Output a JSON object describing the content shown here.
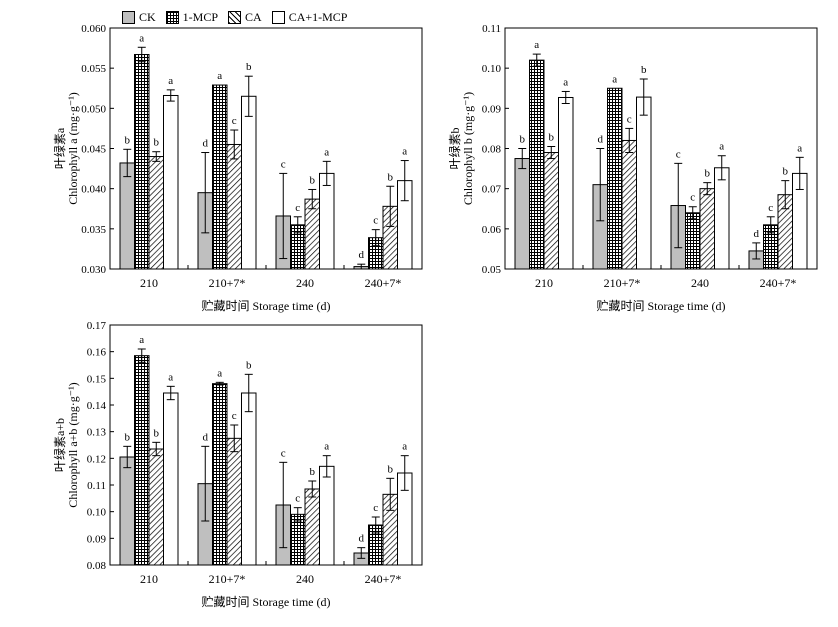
{
  "legend": [
    {
      "name": "CK",
      "pattern": "solid"
    },
    {
      "name": "1-MCP",
      "pattern": "grid"
    },
    {
      "name": "CA",
      "pattern": "hatch"
    },
    {
      "name": "CA+1-MCP",
      "pattern": "white"
    }
  ],
  "colors": {
    "ck_fill": "#bfbfbf",
    "stroke": "#000000",
    "white": "#ffffff"
  },
  "chart_data": [
    {
      "type": "bar",
      "categories": [
        "210",
        "210+7*",
        "240",
        "240+7*"
      ],
      "xlabel": "贮藏时间 Storage time (d)",
      "ylabel_cn": "叶绿素a",
      "ylabel_en": "Chlorophyll a (mg·g⁻¹)",
      "ylim": [
        0.03,
        0.06
      ],
      "ticks": [
        "0.030",
        "0.035",
        "0.040",
        "0.045",
        "0.050",
        "0.055",
        "0.060"
      ],
      "series": [
        {
          "name": "CK",
          "values": [
            0.0432,
            0.0395,
            0.0366,
            0.0303
          ],
          "errors": [
            0.0017,
            0.005,
            0.0053,
            0.0003
          ],
          "letters": [
            "b",
            "d",
            "c",
            "d"
          ]
        },
        {
          "name": "1-MCP",
          "values": [
            0.0567,
            0.0529,
            0.0355,
            0.0339
          ],
          "errors": [
            0.0009,
            0.0,
            0.001,
            0.001
          ],
          "letters": [
            "a",
            "a",
            "c",
            "c"
          ]
        },
        {
          "name": "CA",
          "values": [
            0.044,
            0.0455,
            0.0387,
            0.0378
          ],
          "errors": [
            0.0006,
            0.0018,
            0.0012,
            0.0025
          ],
          "letters": [
            "b",
            "c",
            "b",
            "b"
          ]
        },
        {
          "name": "CA+1-MCP",
          "values": [
            0.0516,
            0.0515,
            0.0419,
            0.041
          ],
          "errors": [
            0.0007,
            0.0025,
            0.0015,
            0.0025
          ],
          "letters": [
            "a",
            "b",
            "a",
            "a"
          ]
        }
      ]
    },
    {
      "type": "bar",
      "categories": [
        "210",
        "210+7*",
        "240",
        "240+7*"
      ],
      "xlabel": "贮藏时间 Storage time (d)",
      "ylabel_cn": "叶绿素b",
      "ylabel_en": "Chlorophyll b (mg·g⁻¹)",
      "ylim": [
        0.05,
        0.11
      ],
      "ticks": [
        "0.05",
        "0.06",
        "0.07",
        "0.08",
        "0.09",
        "0.10",
        "0.11"
      ],
      "series": [
        {
          "name": "CK",
          "values": [
            0.0775,
            0.071,
            0.0658,
            0.0545
          ],
          "errors": [
            0.0025,
            0.009,
            0.0105,
            0.002
          ],
          "letters": [
            "b",
            "d",
            "c",
            "d"
          ]
        },
        {
          "name": "1-MCP",
          "values": [
            0.102,
            0.095,
            0.064,
            0.061
          ],
          "errors": [
            0.0015,
            0.0,
            0.0015,
            0.002
          ],
          "letters": [
            "a",
            "a",
            "c",
            "c"
          ]
        },
        {
          "name": "CA",
          "values": [
            0.079,
            0.082,
            0.07,
            0.0685
          ],
          "errors": [
            0.0015,
            0.003,
            0.0015,
            0.0035
          ],
          "letters": [
            "b",
            "c",
            "b",
            "b"
          ]
        },
        {
          "name": "CA+1-MCP",
          "values": [
            0.0927,
            0.0928,
            0.0752,
            0.0738
          ],
          "errors": [
            0.0015,
            0.0045,
            0.003,
            0.004
          ],
          "letters": [
            "a",
            "b",
            "a",
            "a"
          ]
        }
      ]
    },
    {
      "type": "bar",
      "categories": [
        "210",
        "210+7*",
        "240",
        "240+7*"
      ],
      "xlabel": "贮藏时间 Storage time (d)",
      "ylabel_cn": "叶绿素a+b",
      "ylabel_en": "Chlorophyll a+b (mg·g⁻¹)",
      "ylim": [
        0.08,
        0.17
      ],
      "ticks": [
        "0.08",
        "0.09",
        "0.10",
        "0.11",
        "0.12",
        "0.13",
        "0.14",
        "0.15",
        "0.16",
        "0.17"
      ],
      "series": [
        {
          "name": "CK",
          "values": [
            0.1205,
            0.1105,
            0.1025,
            0.0845
          ],
          "errors": [
            0.004,
            0.014,
            0.016,
            0.002
          ],
          "letters": [
            "b",
            "d",
            "c",
            "d"
          ]
        },
        {
          "name": "1-MCP",
          "values": [
            0.1585,
            0.148,
            0.099,
            0.095
          ],
          "errors": [
            0.0025,
            0.0005,
            0.0025,
            0.003
          ],
          "letters": [
            "a",
            "a",
            "c",
            "c"
          ]
        },
        {
          "name": "CA",
          "values": [
            0.1235,
            0.1275,
            0.1085,
            0.1065
          ],
          "errors": [
            0.0025,
            0.005,
            0.003,
            0.006
          ],
          "letters": [
            "b",
            "c",
            "b",
            "b"
          ]
        },
        {
          "name": "CA+1-MCP",
          "values": [
            0.1445,
            0.1445,
            0.117,
            0.1145
          ],
          "errors": [
            0.0025,
            0.007,
            0.004,
            0.0065
          ],
          "letters": [
            "a",
            "b",
            "a",
            "a"
          ]
        }
      ]
    }
  ]
}
